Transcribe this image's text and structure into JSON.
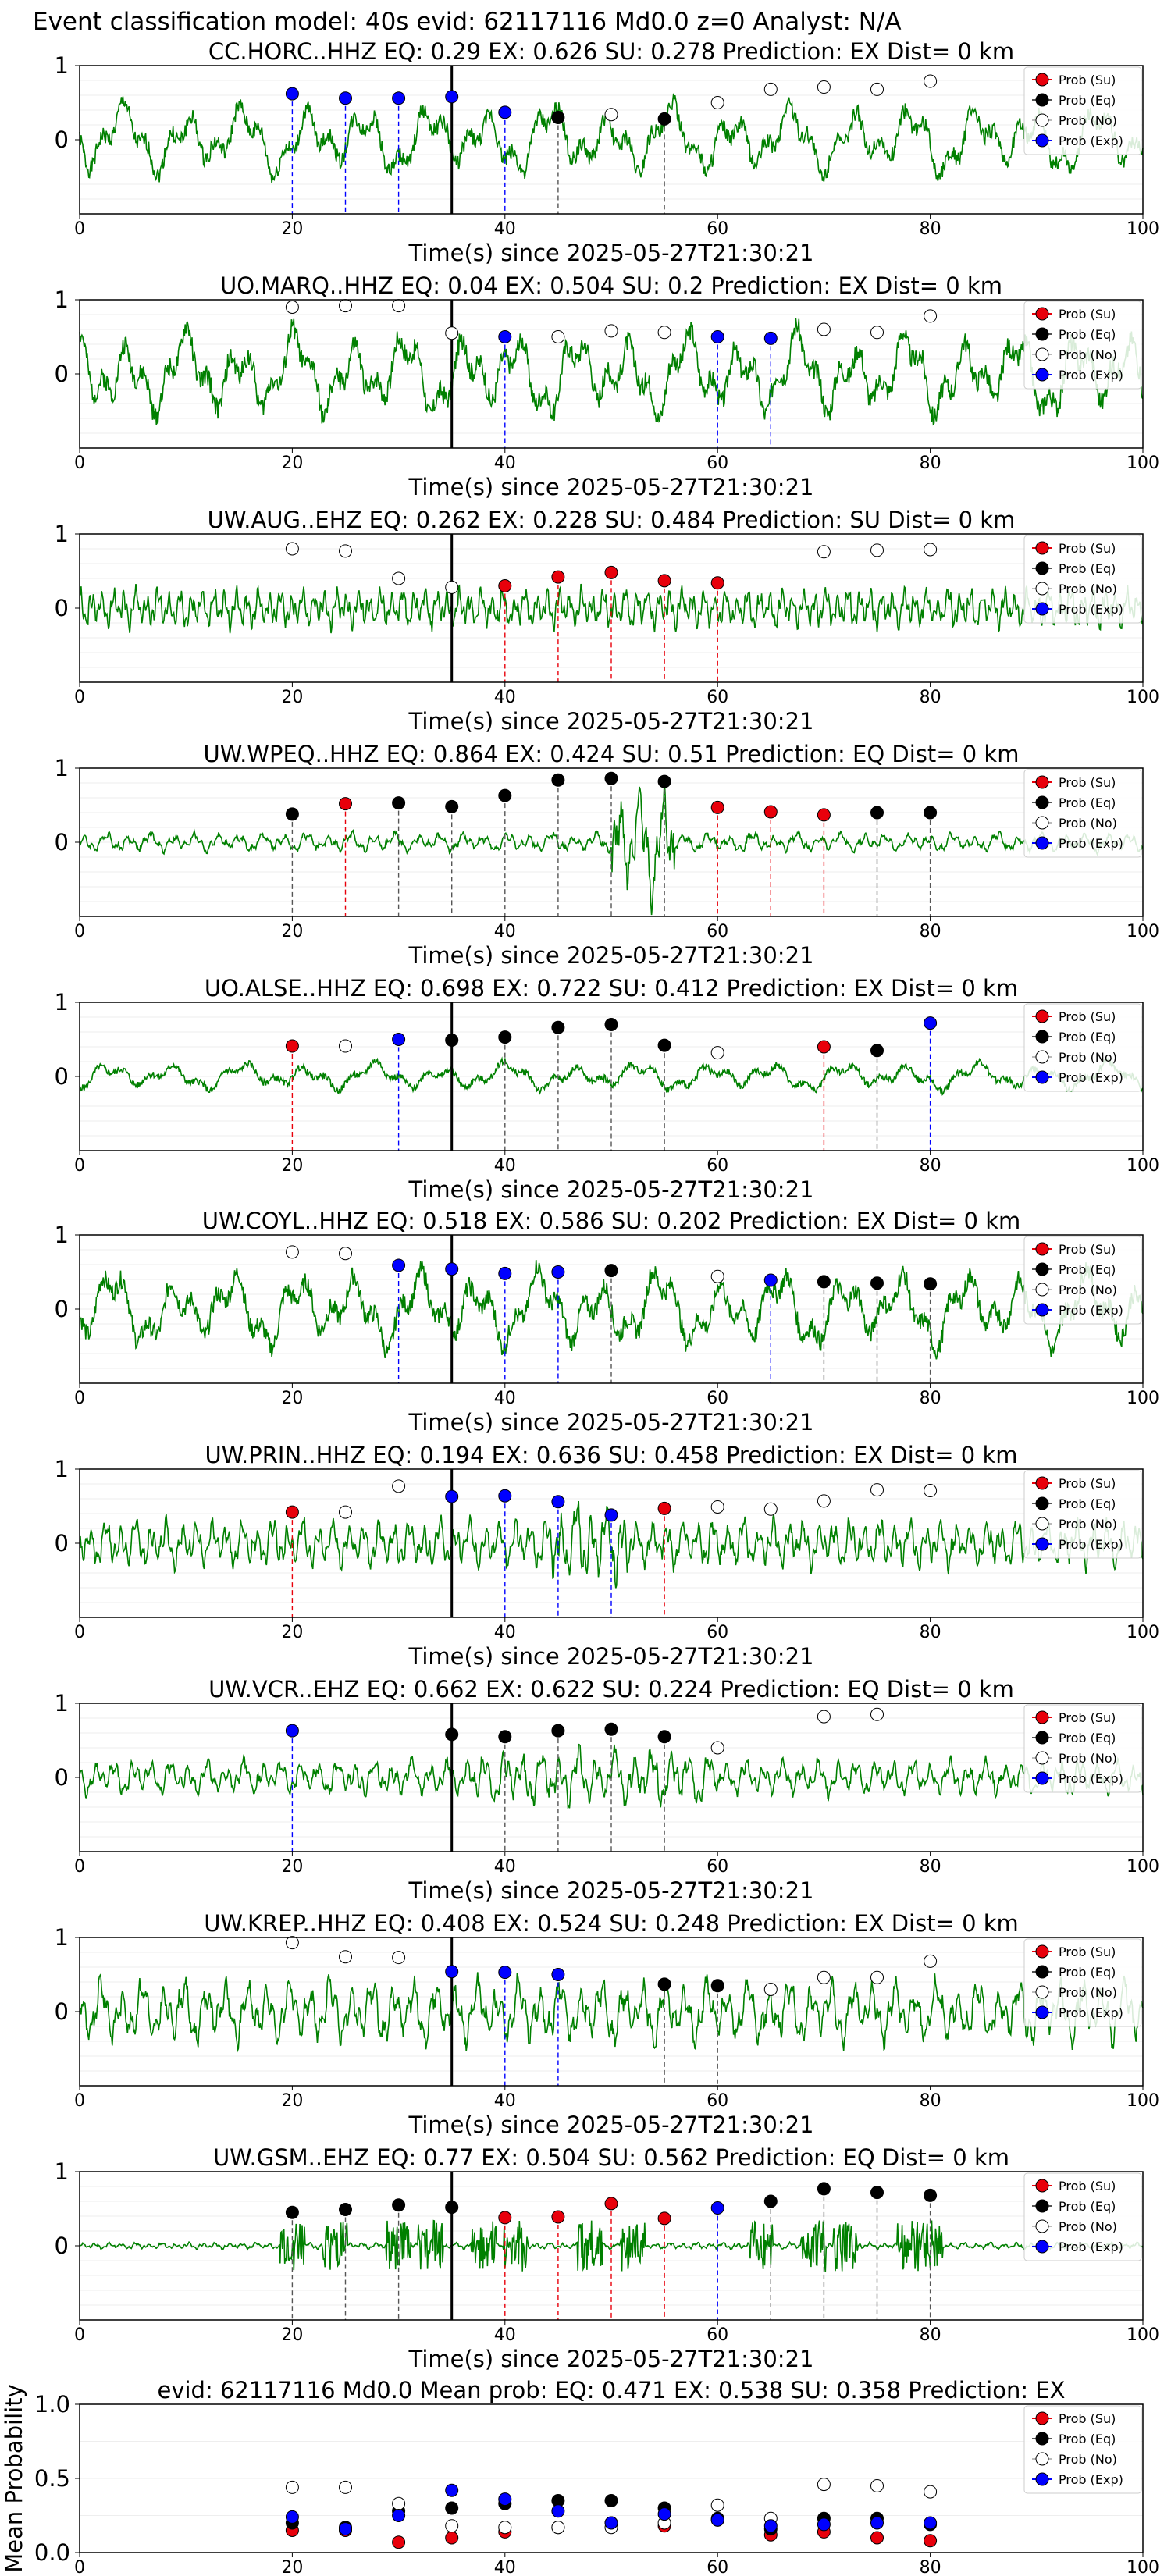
{
  "figure_title": "Event classification model: 40s evid: 62117116 Md0.0 z=0 Analyst: N/A",
  "xlabel": "Time(s) since 2025-05-27T21:30:21",
  "legend": [
    "Prob (Su)",
    "Prob (Eq)",
    "Prob (No)",
    "Prob (Exp)"
  ],
  "colors": {
    "su": "#e8000b",
    "eq": "#000000",
    "no": "#ffffff",
    "exp": "#0000ff",
    "trace": "#008000"
  },
  "chart_data": [
    {
      "type": "line",
      "title": "CC.HORC..HHZ   EQ: 0.29  EX: 0.626  SU: 0.278   Prediction: EX    Dist= 0 km",
      "xlim": [
        0,
        100
      ],
      "ylim": [
        -1,
        1
      ],
      "xticks": [
        "0",
        "20",
        "40",
        "60",
        "80",
        "100"
      ],
      "yticks": [
        "0",
        "1"
      ],
      "trace": {
        "seed": 1,
        "amp": 0.45,
        "freq": 0.55
      },
      "origin": 35,
      "points": [
        {
          "x": 20,
          "y": 0.62,
          "c": "exp"
        },
        {
          "x": 25,
          "y": 0.56,
          "c": "exp"
        },
        {
          "x": 30,
          "y": 0.56,
          "c": "exp"
        },
        {
          "x": 35,
          "y": 0.58,
          "c": "exp"
        },
        {
          "x": 40,
          "y": 0.37,
          "c": "exp"
        },
        {
          "x": 45,
          "y": 0.3,
          "c": "eq"
        },
        {
          "x": 50,
          "y": 0.34,
          "c": "no"
        },
        {
          "x": 55,
          "y": 0.28,
          "c": "eq"
        },
        {
          "x": 60,
          "y": 0.5,
          "c": "no"
        },
        {
          "x": 65,
          "y": 0.68,
          "c": "no"
        },
        {
          "x": 70,
          "y": 0.71,
          "c": "no"
        },
        {
          "x": 75,
          "y": 0.68,
          "c": "no"
        },
        {
          "x": 80,
          "y": 0.79,
          "c": "no"
        }
      ]
    },
    {
      "type": "line",
      "title": "UO.MARQ..HHZ   EQ: 0.04  EX: 0.504  SU: 0.2   Prediction: EX    Dist= 0 km",
      "xlim": [
        0,
        100
      ],
      "ylim": [
        -1,
        1
      ],
      "xticks": [
        "0",
        "20",
        "40",
        "60",
        "80",
        "100"
      ],
      "yticks": [
        "0",
        "1"
      ],
      "trace": {
        "seed": 2,
        "amp": 0.55,
        "freq": 0.6
      },
      "origin": 35,
      "points": [
        {
          "x": 20,
          "y": 0.9,
          "c": "no"
        },
        {
          "x": 25,
          "y": 0.92,
          "c": "no"
        },
        {
          "x": 30,
          "y": 0.92,
          "c": "no"
        },
        {
          "x": 35,
          "y": 0.55,
          "c": "no"
        },
        {
          "x": 40,
          "y": 0.5,
          "c": "exp"
        },
        {
          "x": 45,
          "y": 0.5,
          "c": "no"
        },
        {
          "x": 50,
          "y": 0.58,
          "c": "no"
        },
        {
          "x": 55,
          "y": 0.56,
          "c": "no"
        },
        {
          "x": 60,
          "y": 0.5,
          "c": "exp"
        },
        {
          "x": 65,
          "y": 0.48,
          "c": "exp"
        },
        {
          "x": 70,
          "y": 0.6,
          "c": "no"
        },
        {
          "x": 75,
          "y": 0.56,
          "c": "no"
        },
        {
          "x": 80,
          "y": 0.78,
          "c": "no"
        }
      ]
    },
    {
      "type": "line",
      "title": "UW.AUG..EHZ   EQ: 0.262  EX: 0.228  SU: 0.484   Prediction: SU    Dist= 0 km",
      "xlim": [
        0,
        100
      ],
      "ylim": [
        -1,
        1
      ],
      "xticks": [
        "0",
        "20",
        "40",
        "60",
        "80",
        "100"
      ],
      "yticks": [
        "0",
        "1"
      ],
      "trace": {
        "seed": 3,
        "amp": 0.25,
        "freq": 3.0
      },
      "origin": 35,
      "points": [
        {
          "x": 20,
          "y": 0.8,
          "c": "no"
        },
        {
          "x": 25,
          "y": 0.77,
          "c": "no"
        },
        {
          "x": 30,
          "y": 0.4,
          "c": "no"
        },
        {
          "x": 35,
          "y": 0.28,
          "c": "no"
        },
        {
          "x": 40,
          "y": 0.3,
          "c": "su"
        },
        {
          "x": 45,
          "y": 0.42,
          "c": "su"
        },
        {
          "x": 50,
          "y": 0.48,
          "c": "su"
        },
        {
          "x": 55,
          "y": 0.37,
          "c": "su"
        },
        {
          "x": 60,
          "y": 0.34,
          "c": "su"
        },
        {
          "x": 70,
          "y": 0.76,
          "c": "no"
        },
        {
          "x": 75,
          "y": 0.78,
          "c": "no"
        },
        {
          "x": 80,
          "y": 0.79,
          "c": "no"
        }
      ]
    },
    {
      "type": "line",
      "title": "UW.WPEQ..HHZ   EQ: 0.864  EX: 0.424  SU: 0.51   Prediction: EQ    Dist= 0 km",
      "xlim": [
        0,
        100
      ],
      "ylim": [
        -1,
        1
      ],
      "xticks": [
        "0",
        "20",
        "40",
        "60",
        "80",
        "100"
      ],
      "yticks": [
        "0",
        "1"
      ],
      "trace": {
        "seed": 4,
        "amp": 0.12,
        "freq": 1.5,
        "burst": [
          50,
          56,
          0.8
        ]
      },
      "origin": null,
      "points": [
        {
          "x": 20,
          "y": 0.38,
          "c": "eq"
        },
        {
          "x": 25,
          "y": 0.52,
          "c": "su"
        },
        {
          "x": 30,
          "y": 0.53,
          "c": "eq"
        },
        {
          "x": 35,
          "y": 0.48,
          "c": "eq"
        },
        {
          "x": 40,
          "y": 0.63,
          "c": "eq"
        },
        {
          "x": 45,
          "y": 0.84,
          "c": "eq"
        },
        {
          "x": 50,
          "y": 0.86,
          "c": "eq"
        },
        {
          "x": 55,
          "y": 0.82,
          "c": "eq"
        },
        {
          "x": 60,
          "y": 0.47,
          "c": "su"
        },
        {
          "x": 65,
          "y": 0.41,
          "c": "su"
        },
        {
          "x": 70,
          "y": 0.37,
          "c": "su"
        },
        {
          "x": 75,
          "y": 0.4,
          "c": "eq"
        },
        {
          "x": 80,
          "y": 0.4,
          "c": "eq"
        }
      ]
    },
    {
      "type": "line",
      "title": "UO.ALSE..HHZ   EQ: 0.698  EX: 0.722  SU: 0.412   Prediction: EX    Dist= 0 km",
      "xlim": [
        0,
        100
      ],
      "ylim": [
        -1,
        1
      ],
      "xticks": [
        "0",
        "20",
        "40",
        "60",
        "80",
        "100"
      ],
      "yticks": [
        "0",
        "1"
      ],
      "trace": {
        "seed": 5,
        "amp": 0.18,
        "freq": 0.5
      },
      "origin": 35,
      "points": [
        {
          "x": 20,
          "y": 0.41,
          "c": "su"
        },
        {
          "x": 25,
          "y": 0.41,
          "c": "no"
        },
        {
          "x": 30,
          "y": 0.5,
          "c": "exp"
        },
        {
          "x": 35,
          "y": 0.49,
          "c": "eq"
        },
        {
          "x": 40,
          "y": 0.53,
          "c": "eq"
        },
        {
          "x": 45,
          "y": 0.66,
          "c": "eq"
        },
        {
          "x": 50,
          "y": 0.7,
          "c": "eq"
        },
        {
          "x": 55,
          "y": 0.42,
          "c": "eq"
        },
        {
          "x": 60,
          "y": 0.32,
          "c": "no"
        },
        {
          "x": 70,
          "y": 0.4,
          "c": "su"
        },
        {
          "x": 75,
          "y": 0.35,
          "c": "eq"
        },
        {
          "x": 80,
          "y": 0.72,
          "c": "exp"
        }
      ]
    },
    {
      "type": "line",
      "title": "UW.COYL..HHZ   EQ: 0.518  EX: 0.586  SU: 0.202   Prediction: EX    Dist= 0 km",
      "xlim": [
        0,
        100
      ],
      "ylim": [
        -1,
        1
      ],
      "xticks": [
        "0",
        "20",
        "40",
        "60",
        "80",
        "100"
      ],
      "yticks": [
        "0",
        "1"
      ],
      "trace": {
        "seed": 6,
        "amp": 0.5,
        "freq": 0.55
      },
      "origin": 35,
      "points": [
        {
          "x": 20,
          "y": 0.77,
          "c": "no"
        },
        {
          "x": 25,
          "y": 0.75,
          "c": "no"
        },
        {
          "x": 30,
          "y": 0.59,
          "c": "exp"
        },
        {
          "x": 35,
          "y": 0.54,
          "c": "exp"
        },
        {
          "x": 40,
          "y": 0.48,
          "c": "exp"
        },
        {
          "x": 45,
          "y": 0.5,
          "c": "exp"
        },
        {
          "x": 50,
          "y": 0.52,
          "c": "eq"
        },
        {
          "x": 60,
          "y": 0.44,
          "c": "no"
        },
        {
          "x": 65,
          "y": 0.39,
          "c": "exp"
        },
        {
          "x": 70,
          "y": 0.37,
          "c": "eq"
        },
        {
          "x": 75,
          "y": 0.35,
          "c": "eq"
        },
        {
          "x": 80,
          "y": 0.34,
          "c": "eq"
        }
      ]
    },
    {
      "type": "line",
      "title": "UW.PRIN..HHZ   EQ: 0.194  EX: 0.636  SU: 0.458   Prediction: EX    Dist= 0 km",
      "xlim": [
        0,
        100
      ],
      "ylim": [
        -1,
        1
      ],
      "xticks": [
        "0",
        "20",
        "40",
        "60",
        "80",
        "100"
      ],
      "yticks": [
        "0",
        "1"
      ],
      "trace": {
        "seed": 7,
        "amp": 0.3,
        "freq": 2.2,
        "burst": [
          44,
          52,
          0.5
        ]
      },
      "origin": 35,
      "points": [
        {
          "x": 20,
          "y": 0.42,
          "c": "su"
        },
        {
          "x": 25,
          "y": 0.42,
          "c": "no"
        },
        {
          "x": 30,
          "y": 0.77,
          "c": "no"
        },
        {
          "x": 35,
          "y": 0.63,
          "c": "exp"
        },
        {
          "x": 40,
          "y": 0.64,
          "c": "exp"
        },
        {
          "x": 45,
          "y": 0.56,
          "c": "exp"
        },
        {
          "x": 50,
          "y": 0.38,
          "c": "exp"
        },
        {
          "x": 55,
          "y": 0.47,
          "c": "su"
        },
        {
          "x": 60,
          "y": 0.49,
          "c": "no"
        },
        {
          "x": 65,
          "y": 0.46,
          "c": "no"
        },
        {
          "x": 70,
          "y": 0.57,
          "c": "no"
        },
        {
          "x": 75,
          "y": 0.72,
          "c": "no"
        },
        {
          "x": 80,
          "y": 0.71,
          "c": "no"
        }
      ]
    },
    {
      "type": "line",
      "title": "UW.VCR..EHZ   EQ: 0.662  EX: 0.622  SU: 0.224   Prediction: EQ    Dist= 0 km",
      "xlim": [
        0,
        100
      ],
      "ylim": [
        -1,
        1
      ],
      "xticks": [
        "0",
        "20",
        "40",
        "60",
        "80",
        "100"
      ],
      "yticks": [
        "0",
        "1"
      ],
      "trace": {
        "seed": 8,
        "amp": 0.22,
        "freq": 1.8,
        "burst": [
          36,
          60,
          0.35
        ]
      },
      "origin": 35,
      "points": [
        {
          "x": 20,
          "y": 0.63,
          "c": "exp"
        },
        {
          "x": 35,
          "y": 0.58,
          "c": "eq"
        },
        {
          "x": 40,
          "y": 0.55,
          "c": "eq"
        },
        {
          "x": 45,
          "y": 0.63,
          "c": "eq"
        },
        {
          "x": 50,
          "y": 0.65,
          "c": "eq"
        },
        {
          "x": 55,
          "y": 0.55,
          "c": "eq"
        },
        {
          "x": 60,
          "y": 0.4,
          "c": "no"
        },
        {
          "x": 70,
          "y": 0.82,
          "c": "no"
        },
        {
          "x": 75,
          "y": 0.85,
          "c": "no"
        }
      ]
    },
    {
      "type": "line",
      "title": "UW.KREP..HHZ   EQ: 0.408  EX: 0.524  SU: 0.248   Prediction: EX    Dist= 0 km",
      "xlim": [
        0,
        100
      ],
      "ylim": [
        -1,
        1
      ],
      "xticks": [
        "0",
        "20",
        "40",
        "60",
        "80",
        "100"
      ],
      "yticks": [
        "0",
        "1"
      ],
      "trace": {
        "seed": 9,
        "amp": 0.4,
        "freq": 1.6
      },
      "origin": 35,
      "points": [
        {
          "x": 20,
          "y": 0.93,
          "c": "no"
        },
        {
          "x": 25,
          "y": 0.74,
          "c": "no"
        },
        {
          "x": 30,
          "y": 0.73,
          "c": "no"
        },
        {
          "x": 35,
          "y": 0.54,
          "c": "exp"
        },
        {
          "x": 40,
          "y": 0.53,
          "c": "exp"
        },
        {
          "x": 45,
          "y": 0.5,
          "c": "exp"
        },
        {
          "x": 55,
          "y": 0.37,
          "c": "eq"
        },
        {
          "x": 60,
          "y": 0.35,
          "c": "eq"
        },
        {
          "x": 65,
          "y": 0.3,
          "c": "no"
        },
        {
          "x": 70,
          "y": 0.46,
          "c": "no"
        },
        {
          "x": 75,
          "y": 0.46,
          "c": "no"
        },
        {
          "x": 80,
          "y": 0.68,
          "c": "no"
        }
      ]
    },
    {
      "type": "line",
      "title": "UW.GSM..EHZ   EQ: 0.77  EX: 0.504  SU: 0.562   Prediction: EQ    Dist= 0 km",
      "xlim": [
        0,
        100
      ],
      "ylim": [
        -1,
        1
      ],
      "xticks": [
        "0",
        "20",
        "40",
        "60",
        "80",
        "100"
      ],
      "yticks": [
        "0",
        "1"
      ],
      "trace": {
        "seed": 10,
        "amp": 0.04,
        "freq": 2.5,
        "spikes": true
      },
      "origin": 35,
      "points": [
        {
          "x": 20,
          "y": 0.45,
          "c": "eq"
        },
        {
          "x": 25,
          "y": 0.49,
          "c": "eq"
        },
        {
          "x": 30,
          "y": 0.55,
          "c": "eq"
        },
        {
          "x": 35,
          "y": 0.52,
          "c": "eq"
        },
        {
          "x": 40,
          "y": 0.38,
          "c": "su"
        },
        {
          "x": 45,
          "y": 0.39,
          "c": "su"
        },
        {
          "x": 50,
          "y": 0.57,
          "c": "su"
        },
        {
          "x": 55,
          "y": 0.37,
          "c": "su"
        },
        {
          "x": 60,
          "y": 0.51,
          "c": "exp"
        },
        {
          "x": 65,
          "y": 0.6,
          "c": "eq"
        },
        {
          "x": 70,
          "y": 0.77,
          "c": "eq"
        },
        {
          "x": 75,
          "y": 0.72,
          "c": "eq"
        },
        {
          "x": 80,
          "y": 0.68,
          "c": "eq"
        }
      ]
    },
    {
      "type": "scatter",
      "title": "evid: 62117116  Md0.0   Mean prob:   EQ: 0.471  EX: 0.538  SU: 0.358   Prediction: EX",
      "ylabel": "Mean Probability",
      "xlim": [
        0,
        100
      ],
      "ylim": [
        0,
        1
      ],
      "xticks": [
        "0",
        "20",
        "40",
        "60",
        "80",
        "100"
      ],
      "yticks": [
        "0.0",
        "0.5",
        "1.0"
      ],
      "series": [
        {
          "name": "Prob (Su)",
          "c": "su",
          "x": [
            20,
            25,
            30,
            35,
            40,
            45,
            50,
            55,
            60,
            65,
            70,
            75,
            80
          ],
          "y": [
            0.15,
            0.15,
            0.07,
            0.1,
            0.14,
            0.17,
            0.2,
            0.18,
            0.22,
            0.12,
            0.14,
            0.1,
            0.08
          ]
        },
        {
          "name": "Prob (Eq)",
          "c": "eq",
          "x": [
            20,
            25,
            30,
            35,
            40,
            45,
            50,
            55,
            60,
            65,
            70,
            75,
            80
          ],
          "y": [
            0.2,
            0.17,
            0.28,
            0.3,
            0.33,
            0.35,
            0.35,
            0.3,
            0.23,
            0.16,
            0.23,
            0.23,
            0.19
          ]
        },
        {
          "name": "Prob (No)",
          "c": "no",
          "x": [
            20,
            25,
            30,
            35,
            40,
            45,
            50,
            55,
            60,
            65,
            70,
            75,
            80
          ],
          "y": [
            0.44,
            0.44,
            0.33,
            0.18,
            0.17,
            0.17,
            0.17,
            0.2,
            0.32,
            0.23,
            0.46,
            0.45,
            0.41
          ]
        },
        {
          "name": "Prob (Exp)",
          "c": "exp",
          "x": [
            20,
            25,
            30,
            35,
            40,
            45,
            50,
            55,
            60,
            65,
            70,
            75,
            80
          ],
          "y": [
            0.24,
            0.16,
            0.25,
            0.42,
            0.36,
            0.28,
            0.2,
            0.26,
            0.22,
            0.18,
            0.19,
            0.2,
            0.2
          ]
        }
      ]
    }
  ]
}
